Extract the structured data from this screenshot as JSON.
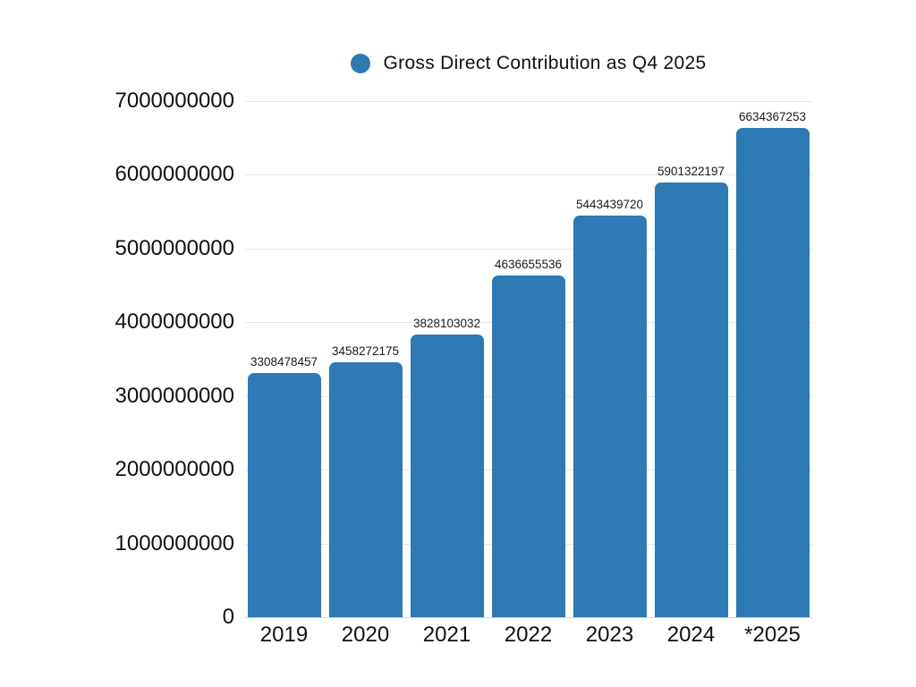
{
  "chart_data": {
    "type": "bar",
    "title": "Gross Direct Contribution as Q4 2025",
    "legend": {
      "label": "Gross Direct Contribution as Q4 2025",
      "marker": "circle-icon",
      "marker_color": "#2d7ab5",
      "position": "top-center"
    },
    "categories": [
      "2019",
      "2020",
      "2021",
      "2022",
      "2023",
      "2024",
      "*2025"
    ],
    "values": [
      3308478457,
      3458272175,
      3828103032,
      4636655536,
      5443439720,
      5901322197,
      6634367253
    ],
    "value_labels": [
      "3308478457",
      "3458272175",
      "3828103032",
      "4636655536",
      "5443439720",
      "5901322197",
      "6634367253"
    ],
    "xlabel": "",
    "ylabel": "",
    "ylim": [
      0,
      7000000000
    ],
    "yticks": [
      0,
      1000000000,
      2000000000,
      3000000000,
      4000000000,
      5000000000,
      6000000000,
      7000000000
    ],
    "ytick_labels": [
      "0",
      "1000000000",
      "2000000000",
      "3000000000",
      "4000000000",
      "5000000000",
      "6000000000",
      "7000000000"
    ],
    "grid": "horizontal",
    "bar_color": "#2d7ab5",
    "background": "#ffffff",
    "text_color": "#111111",
    "gridline_color": "#e7e7e7"
  }
}
